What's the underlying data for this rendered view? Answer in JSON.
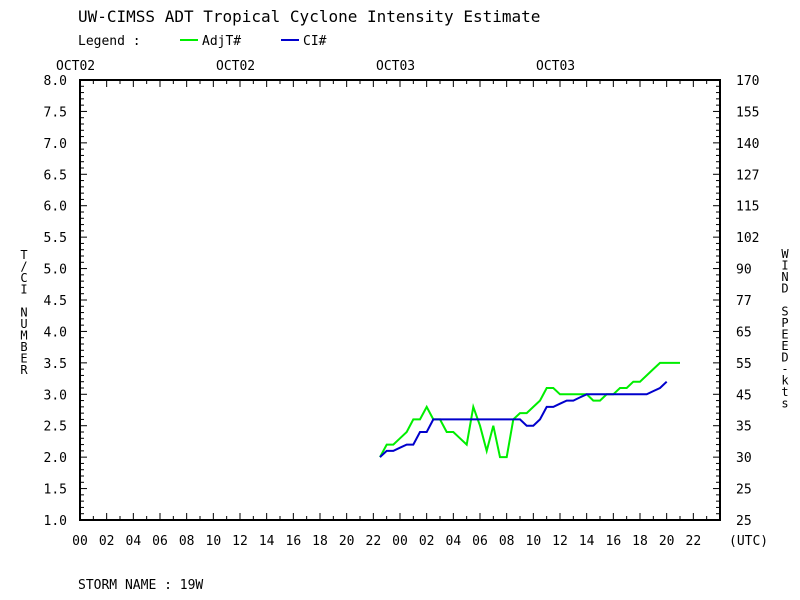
{
  "title": "UW-CIMSS ADT Tropical Cyclone Intensity Estimate",
  "legend": {
    "label": "Legend :",
    "items": [
      {
        "name": "AdjT#",
        "color": "#00ee00"
      },
      {
        "name": "CI#",
        "color": "#0000cc"
      }
    ]
  },
  "date_labels": [
    "OCT02",
    "OCT02",
    "OCT03",
    "OCT03"
  ],
  "y_left_label": "T/CI NUMBER",
  "y_right_label": "WIND SPEED-kts",
  "x_unit_label": "(UTC)",
  "storm_name": "STORM NAME : 19W",
  "chart_data": {
    "type": "line",
    "title": "UW-CIMSS ADT Tropical Cyclone Intensity Estimate",
    "xlabel": "(UTC)",
    "ylabel": "T/CI NUMBER",
    "y2label": "WIND SPEED-kts",
    "xlim": [
      0,
      48
    ],
    "ylim": [
      1.0,
      8.0
    ],
    "x_tick_labels": [
      "00",
      "02",
      "04",
      "06",
      "08",
      "10",
      "12",
      "14",
      "16",
      "18",
      "20",
      "22",
      "00",
      "02",
      "04",
      "06",
      "08",
      "10",
      "12",
      "14",
      "16",
      "18",
      "20",
      "22"
    ],
    "y_tick_labels": [
      "1.0",
      "1.5",
      "2.0",
      "2.5",
      "3.0",
      "3.5",
      "4.0",
      "4.5",
      "5.0",
      "5.5",
      "6.0",
      "6.5",
      "7.0",
      "7.5",
      "8.0"
    ],
    "y2_tick_labels": [
      "25",
      "25",
      "30",
      "35",
      "45",
      "55",
      "65",
      "77",
      "90",
      "102",
      "115",
      "127",
      "140",
      "155",
      "170"
    ],
    "legend_position": "top-left",
    "grid": false,
    "series": [
      {
        "name": "AdjT#",
        "color": "#00ee00",
        "x": [
          22.5,
          23.0,
          23.5,
          24.0,
          24.5,
          25.0,
          25.5,
          26.0,
          26.5,
          27.0,
          27.5,
          28.0,
          28.5,
          29.0,
          29.5,
          30.0,
          30.5,
          31.0,
          31.5,
          32.0,
          32.5,
          33.0,
          33.5,
          34.0,
          34.5,
          35.0,
          35.5,
          36.0,
          36.5,
          37.0,
          37.5,
          38.0,
          38.5,
          39.0,
          39.5,
          40.0,
          40.5,
          41.0,
          41.5,
          42.0,
          42.5,
          43.0,
          43.5,
          44.0,
          44.5,
          45.0
        ],
        "y": [
          2.0,
          2.2,
          2.2,
          2.3,
          2.4,
          2.6,
          2.6,
          2.8,
          2.6,
          2.6,
          2.4,
          2.4,
          2.3,
          2.2,
          2.8,
          2.5,
          2.1,
          2.5,
          2.0,
          2.0,
          2.6,
          2.7,
          2.7,
          2.8,
          2.9,
          3.1,
          3.1,
          3.0,
          3.0,
          3.0,
          3.0,
          3.0,
          2.9,
          2.9,
          3.0,
          3.0,
          3.1,
          3.1,
          3.2,
          3.2,
          3.3,
          3.4,
          3.5,
          3.5,
          3.5,
          3.5
        ]
      },
      {
        "name": "CI#",
        "color": "#0000cc",
        "x": [
          22.5,
          23.0,
          23.5,
          24.0,
          24.5,
          25.0,
          25.5,
          26.0,
          26.5,
          27.0,
          27.5,
          28.0,
          28.5,
          29.0,
          29.5,
          30.0,
          30.5,
          31.0,
          31.5,
          32.0,
          32.5,
          33.0,
          33.5,
          34.0,
          34.5,
          35.0,
          35.5,
          36.0,
          36.5,
          37.0,
          37.5,
          38.0,
          38.5,
          39.0,
          39.5,
          40.0,
          40.5,
          41.0,
          41.5,
          42.0,
          42.5,
          43.0,
          43.5,
          44.0
        ],
        "y": [
          2.0,
          2.1,
          2.1,
          2.15,
          2.2,
          2.2,
          2.4,
          2.4,
          2.6,
          2.6,
          2.6,
          2.6,
          2.6,
          2.6,
          2.6,
          2.6,
          2.6,
          2.6,
          2.6,
          2.6,
          2.6,
          2.6,
          2.5,
          2.5,
          2.6,
          2.8,
          2.8,
          2.85,
          2.9,
          2.9,
          2.95,
          3.0,
          3.0,
          3.0,
          3.0,
          3.0,
          3.0,
          3.0,
          3.0,
          3.0,
          3.0,
          3.05,
          3.1,
          3.2
        ]
      }
    ]
  }
}
